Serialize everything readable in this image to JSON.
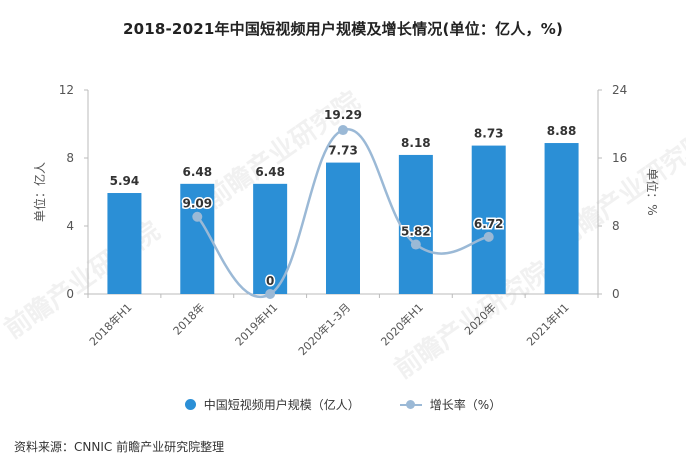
{
  "title": "2018-2021年中国短视频用户规模及增长情况(单位：亿人，%)",
  "source": "资料来源：CNNIC 前瞻产业研究院整理",
  "watermark": "前瞻产业研究院",
  "colors": {
    "bar": "#2b8fd6",
    "line": "#9bb9d6",
    "axis": "#bbbbbb",
    "grid": "#e6e6e6",
    "label": "#333333"
  },
  "legend": {
    "bar_label": "中国短视频用户规模（亿人）",
    "line_label": "增长率（%）"
  },
  "chart_data": {
    "type": "bar",
    "title": "2018-2021年中国短视频用户规模及增长情况(单位：亿人，%)",
    "categories": [
      "2018年H1",
      "2018年",
      "2019年H1",
      "2020年1-3月",
      "2020年H1",
      "2020年",
      "2021年H1"
    ],
    "series": [
      {
        "name": "中国短视频用户规模（亿人）",
        "type": "bar",
        "axis": "left",
        "values": [
          5.94,
          6.48,
          6.48,
          7.73,
          8.18,
          8.73,
          8.88
        ]
      },
      {
        "name": "增长率（%）",
        "type": "line",
        "axis": "right",
        "smooth": true,
        "values": [
          null,
          9.09,
          0,
          19.29,
          5.82,
          6.72,
          null
        ]
      }
    ],
    "ylabel": "单位：亿人",
    "ylabel_right": "单位：%",
    "ylim": [
      0,
      12
    ],
    "yticks": [
      0,
      4,
      8,
      12
    ],
    "ylim_right": [
      0,
      24
    ],
    "yticks_right": [
      0,
      8,
      16,
      24
    ],
    "grid": false,
    "legend_position": "bottom"
  }
}
